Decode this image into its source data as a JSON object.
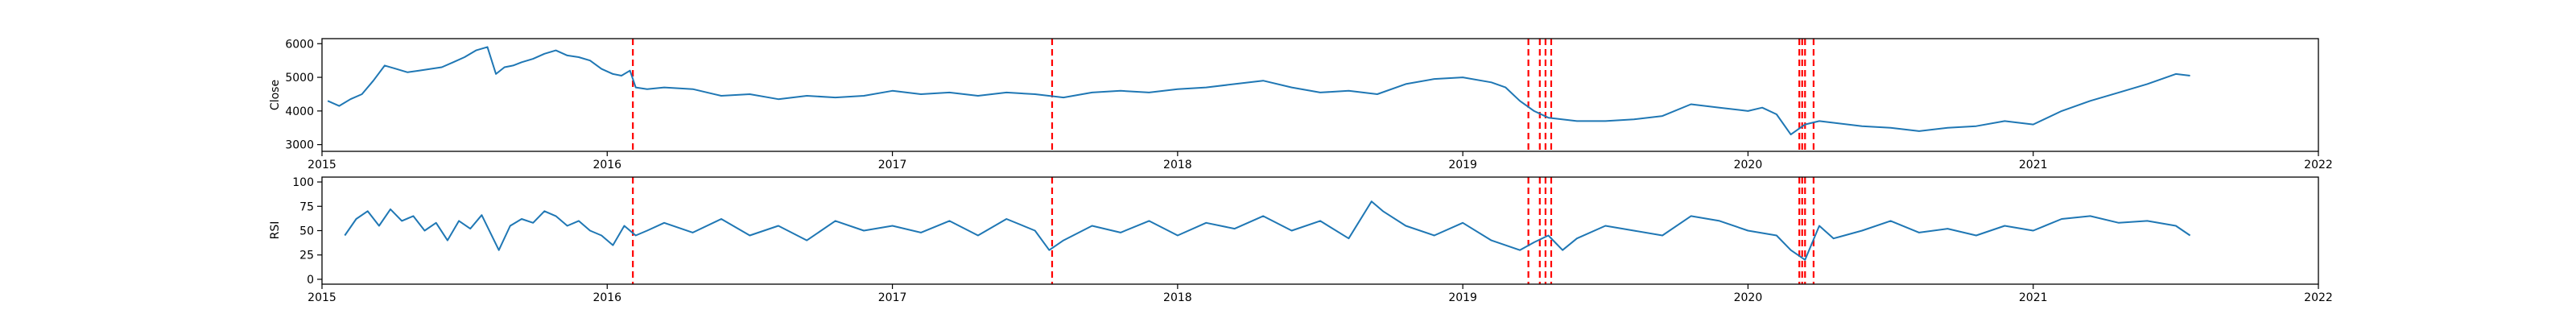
{
  "chart_data": [
    {
      "type": "line",
      "ylabel": "Close",
      "xlabel": "",
      "title": "",
      "xlim": [
        2015.0,
        2022.0
      ],
      "ylim": [
        2800,
        6150
      ],
      "xticks": [
        2015,
        2016,
        2017,
        2018,
        2019,
        2020,
        2021,
        2022
      ],
      "xtick_labels": [
        "2015",
        "2016",
        "2017",
        "2018",
        "2019",
        "2020",
        "2021",
        "2022"
      ],
      "yticks": [
        3000,
        4000,
        5000,
        6000
      ],
      "ytick_labels": [
        "3000",
        "4000",
        "5000",
        "6000"
      ],
      "series": [
        {
          "name": "Close",
          "color": "#1f77b4",
          "x": [
            2015.02,
            2015.06,
            2015.1,
            2015.14,
            2015.18,
            2015.22,
            2015.26,
            2015.3,
            2015.34,
            2015.38,
            2015.42,
            2015.46,
            2015.5,
            2015.54,
            2015.58,
            2015.61,
            2015.64,
            2015.67,
            2015.7,
            2015.74,
            2015.78,
            2015.82,
            2015.86,
            2015.9,
            2015.94,
            2015.98,
            2016.02,
            2016.05,
            2016.08,
            2016.1,
            2016.14,
            2016.2,
            2016.3,
            2016.4,
            2016.5,
            2016.6,
            2016.7,
            2016.8,
            2016.9,
            2017.0,
            2017.1,
            2017.2,
            2017.3,
            2017.4,
            2017.5,
            2017.6,
            2017.7,
            2017.8,
            2017.9,
            2018.0,
            2018.1,
            2018.2,
            2018.3,
            2018.4,
            2018.5,
            2018.6,
            2018.7,
            2018.8,
            2018.9,
            2019.0,
            2019.1,
            2019.15,
            2019.2,
            2019.25,
            2019.3,
            2019.4,
            2019.5,
            2019.6,
            2019.7,
            2019.8,
            2019.9,
            2020.0,
            2020.05,
            2020.1,
            2020.15,
            2020.2,
            2020.25,
            2020.3,
            2020.4,
            2020.5,
            2020.6,
            2020.7,
            2020.8,
            2020.9,
            2021.0,
            2021.1,
            2021.2,
            2021.3,
            2021.4,
            2021.5,
            2021.55
          ],
          "y": [
            4300,
            4150,
            4350,
            4500,
            4900,
            5350,
            5250,
            5150,
            5200,
            5250,
            5300,
            5450,
            5600,
            5800,
            5900,
            5100,
            5300,
            5350,
            5450,
            5550,
            5700,
            5800,
            5650,
            5600,
            5500,
            5250,
            5100,
            5050,
            5200,
            4700,
            4650,
            4700,
            4650,
            4450,
            4500,
            4350,
            4450,
            4400,
            4450,
            4600,
            4500,
            4550,
            4450,
            4550,
            4500,
            4400,
            4550,
            4600,
            4550,
            4650,
            4700,
            4800,
            4900,
            4700,
            4550,
            4600,
            4500,
            4800,
            4950,
            5000,
            4850,
            4700,
            4300,
            4000,
            3800,
            3700,
            3700,
            3750,
            3850,
            4200,
            4100,
            4000,
            4100,
            3900,
            3300,
            3600,
            3700,
            3650,
            3550,
            3500,
            3400,
            3500,
            3550,
            3700,
            3600,
            4000,
            4300,
            4550,
            4800,
            5100,
            5050
          ]
        }
      ]
    },
    {
      "type": "line",
      "ylabel": "RSI",
      "xlabel": "",
      "title": "",
      "xlim": [
        2015.0,
        2022.0
      ],
      "ylim": [
        -5,
        105
      ],
      "xticks": [
        2015,
        2016,
        2017,
        2018,
        2019,
        2020,
        2021,
        2022
      ],
      "xtick_labels": [
        "2015",
        "2016",
        "2017",
        "2018",
        "2019",
        "2020",
        "2021",
        "2022"
      ],
      "yticks": [
        0,
        25,
        50,
        75,
        100
      ],
      "ytick_labels": [
        "0",
        "25",
        "50",
        "75",
        "100"
      ],
      "series": [
        {
          "name": "RSI",
          "color": "#1f77b4",
          "x": [
            2015.08,
            2015.12,
            2015.16,
            2015.2,
            2015.24,
            2015.28,
            2015.32,
            2015.36,
            2015.4,
            2015.44,
            2015.48,
            2015.52,
            2015.56,
            2015.62,
            2015.66,
            2015.7,
            2015.74,
            2015.78,
            2015.82,
            2015.86,
            2015.9,
            2015.94,
            2015.98,
            2016.02,
            2016.06,
            2016.1,
            2016.14,
            2016.2,
            2016.3,
            2016.4,
            2016.5,
            2016.6,
            2016.7,
            2016.8,
            2016.9,
            2017.0,
            2017.1,
            2017.2,
            2017.3,
            2017.4,
            2017.5,
            2017.55,
            2017.6,
            2017.7,
            2017.8,
            2017.9,
            2018.0,
            2018.1,
            2018.2,
            2018.3,
            2018.4,
            2018.5,
            2018.6,
            2018.68,
            2018.72,
            2018.8,
            2018.9,
            2019.0,
            2019.1,
            2019.2,
            2019.25,
            2019.3,
            2019.35,
            2019.4,
            2019.5,
            2019.6,
            2019.7,
            2019.8,
            2019.9,
            2020.0,
            2020.1,
            2020.15,
            2020.2,
            2020.25,
            2020.3,
            2020.4,
            2020.5,
            2020.6,
            2020.7,
            2020.8,
            2020.9,
            2021.0,
            2021.1,
            2021.2,
            2021.3,
            2021.4,
            2021.5,
            2021.55
          ],
          "y": [
            45,
            62,
            70,
            55,
            72,
            60,
            65,
            50,
            58,
            40,
            60,
            52,
            66,
            30,
            55,
            62,
            58,
            70,
            65,
            55,
            60,
            50,
            45,
            35,
            55,
            45,
            50,
            58,
            48,
            62,
            45,
            55,
            40,
            60,
            50,
            55,
            48,
            60,
            45,
            62,
            50,
            30,
            40,
            55,
            48,
            60,
            45,
            58,
            52,
            65,
            50,
            60,
            42,
            80,
            70,
            55,
            45,
            58,
            40,
            30,
            38,
            45,
            30,
            42,
            55,
            50,
            45,
            65,
            60,
            50,
            45,
            30,
            20,
            55,
            42,
            50,
            60,
            48,
            52,
            45,
            55,
            50,
            62,
            65,
            58,
            60,
            55,
            45
          ]
        }
      ]
    }
  ],
  "vertical_markers": {
    "color": "#ff0000",
    "style": "dashed",
    "x": [
      2016.09,
      2017.56,
      2019.23,
      2019.27,
      2019.29,
      2019.31,
      2020.18,
      2020.19,
      2020.2,
      2020.23
    ]
  }
}
